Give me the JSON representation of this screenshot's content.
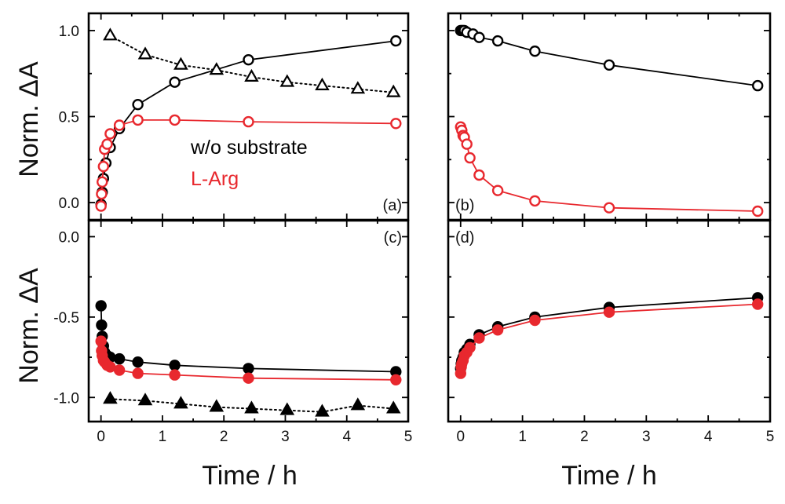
{
  "figure": {
    "y_axis_label": "Norm. ΔA",
    "x_axis_label": "Time / h"
  },
  "legend": [
    {
      "label": "w/o substrate",
      "color": "#000000"
    },
    {
      "label": "L-Arg",
      "color": "#e8282e"
    }
  ],
  "colors": {
    "black_series": "#000000",
    "red_series": "#e8282e"
  },
  "chart_data": [
    {
      "panel_label": "(a)",
      "type": "scatter",
      "xlabel": "",
      "ylabel": "Norm. ΔA",
      "xlim": [
        -0.2,
        5.0
      ],
      "ylim": [
        -0.1,
        1.1
      ],
      "yticks": [
        "0.0",
        "0.5",
        "1.0"
      ],
      "yticks_values": [
        0.0,
        0.5,
        1.0
      ],
      "xticks_values": [
        0,
        1,
        2,
        3,
        4,
        5
      ],
      "show_x_tick_labels": false,
      "show_y_tick_labels": true,
      "series": [
        {
          "name": "w/o substrate",
          "color": "#000000",
          "marker": "circle",
          "filled": false,
          "line": "solid",
          "x": [
            0.0,
            0.02,
            0.04,
            0.08,
            0.15,
            0.3,
            0.6,
            1.2,
            2.4,
            4.8
          ],
          "y": [
            -0.01,
            0.06,
            0.14,
            0.23,
            0.32,
            0.43,
            0.57,
            0.7,
            0.83,
            0.94
          ]
        },
        {
          "name": "L-Arg",
          "color": "#e8282e",
          "marker": "circle",
          "filled": false,
          "line": "solid",
          "x": [
            0.0,
            0.01,
            0.02,
            0.04,
            0.06,
            0.1,
            0.15,
            0.3,
            0.6,
            1.2,
            2.4,
            4.8
          ],
          "y": [
            -0.02,
            0.05,
            0.12,
            0.21,
            0.31,
            0.34,
            0.4,
            0.45,
            0.48,
            0.48,
            0.47,
            0.46
          ]
        },
        {
          "color": "#000000",
          "marker": "triangle",
          "filled": false,
          "line": "dotted",
          "x": [
            0.15,
            0.72,
            1.3,
            1.88,
            2.45,
            3.03,
            3.6,
            4.18,
            4.76
          ],
          "y": [
            0.97,
            0.86,
            0.8,
            0.77,
            0.73,
            0.7,
            0.68,
            0.66,
            0.64
          ]
        }
      ]
    },
    {
      "panel_label": "(b)",
      "type": "scatter",
      "xlim": [
        -0.2,
        5.0
      ],
      "ylim": [
        -0.1,
        1.1
      ],
      "xticks_values": [
        0,
        1,
        2,
        3,
        4,
        5
      ],
      "yticks_values": [
        0.0,
        0.5,
        1.0
      ],
      "show_x_tick_labels": false,
      "show_y_tick_labels": false,
      "series": [
        {
          "name": "w/o substrate",
          "color": "#000000",
          "marker": "circle",
          "filled": false,
          "line": "solid",
          "x": [
            0.0,
            0.02,
            0.04,
            0.06,
            0.1,
            0.2,
            0.3,
            0.6,
            1.2,
            2.4,
            4.8
          ],
          "y": [
            1.0,
            1.0,
            1.0,
            1.0,
            0.99,
            0.98,
            0.96,
            0.94,
            0.88,
            0.8,
            0.68
          ]
        },
        {
          "name": "L-Arg",
          "color": "#e8282e",
          "marker": "circle",
          "filled": false,
          "line": "solid",
          "x": [
            0.0,
            0.02,
            0.04,
            0.06,
            0.1,
            0.15,
            0.3,
            0.6,
            1.2,
            2.4,
            4.8
          ],
          "y": [
            0.44,
            0.42,
            0.39,
            0.38,
            0.34,
            0.26,
            0.16,
            0.07,
            0.01,
            -0.03,
            -0.05
          ]
        }
      ]
    },
    {
      "panel_label": "(c)",
      "type": "scatter",
      "xlabel": "Time / h",
      "ylabel": "Norm. ΔA",
      "xlim": [
        -0.2,
        5.0
      ],
      "ylim": [
        -1.15,
        0.1
      ],
      "xticks": [
        "0",
        "1",
        "2",
        "3",
        "4",
        "5"
      ],
      "xticks_values": [
        0,
        1,
        2,
        3,
        4,
        5
      ],
      "yticks": [
        "-1.0",
        "-0.5",
        "0.0"
      ],
      "yticks_values": [
        -1.0,
        -0.5,
        0.0
      ],
      "show_x_tick_labels": true,
      "show_y_tick_labels": true,
      "series": [
        {
          "name": "w/o substrate",
          "color": "#000000",
          "marker": "circle",
          "filled": true,
          "line": "solid",
          "x": [
            0.0,
            0.01,
            0.02,
            0.04,
            0.06,
            0.1,
            0.15,
            0.3,
            0.6,
            1.2,
            2.4,
            4.8
          ],
          "y": [
            -0.43,
            -0.55,
            -0.62,
            -0.68,
            -0.72,
            -0.74,
            -0.75,
            -0.76,
            -0.78,
            -0.8,
            -0.82,
            -0.84
          ]
        },
        {
          "name": "L-Arg",
          "color": "#e8282e",
          "marker": "circle",
          "filled": true,
          "line": "solid",
          "x": [
            0.0,
            0.01,
            0.02,
            0.04,
            0.06,
            0.1,
            0.15,
            0.3,
            0.6,
            1.2,
            2.4,
            4.8
          ],
          "y": [
            -0.65,
            -0.71,
            -0.74,
            -0.77,
            -0.78,
            -0.8,
            -0.81,
            -0.83,
            -0.85,
            -0.86,
            -0.88,
            -0.89
          ]
        },
        {
          "color": "#000000",
          "marker": "triangle",
          "filled": true,
          "line": "dotted",
          "x": [
            0.15,
            0.72,
            1.3,
            1.88,
            2.45,
            3.03,
            3.6,
            4.18,
            4.76
          ],
          "y": [
            -1.01,
            -1.02,
            -1.04,
            -1.06,
            -1.07,
            -1.08,
            -1.09,
            -1.05,
            -1.07
          ]
        }
      ]
    },
    {
      "panel_label": "(d)",
      "type": "scatter",
      "xlabel": "Time / h",
      "xlim": [
        -0.2,
        5.0
      ],
      "ylim": [
        -1.15,
        0.1
      ],
      "xticks": [
        "0",
        "1",
        "2",
        "3",
        "4",
        "5"
      ],
      "xticks_values": [
        0,
        1,
        2,
        3,
        4,
        5
      ],
      "yticks_values": [
        -1.0,
        -0.5,
        0.0
      ],
      "show_x_tick_labels": true,
      "show_y_tick_labels": false,
      "series": [
        {
          "name": "w/o substrate",
          "color": "#000000",
          "marker": "circle",
          "filled": true,
          "line": "solid",
          "x": [
            0.0,
            0.01,
            0.02,
            0.04,
            0.06,
            0.1,
            0.15,
            0.3,
            0.6,
            1.2,
            2.4,
            4.8
          ],
          "y": [
            -0.82,
            -0.79,
            -0.77,
            -0.75,
            -0.72,
            -0.7,
            -0.67,
            -0.61,
            -0.56,
            -0.5,
            -0.44,
            -0.38
          ]
        },
        {
          "name": "L-Arg",
          "color": "#e8282e",
          "marker": "circle",
          "filled": true,
          "line": "solid",
          "x": [
            0.0,
            0.01,
            0.02,
            0.04,
            0.06,
            0.1,
            0.15,
            0.3,
            0.6,
            1.2,
            2.4,
            4.8
          ],
          "y": [
            -0.85,
            -0.81,
            -0.79,
            -0.77,
            -0.74,
            -0.72,
            -0.69,
            -0.63,
            -0.58,
            -0.52,
            -0.47,
            -0.42
          ]
        }
      ]
    }
  ]
}
